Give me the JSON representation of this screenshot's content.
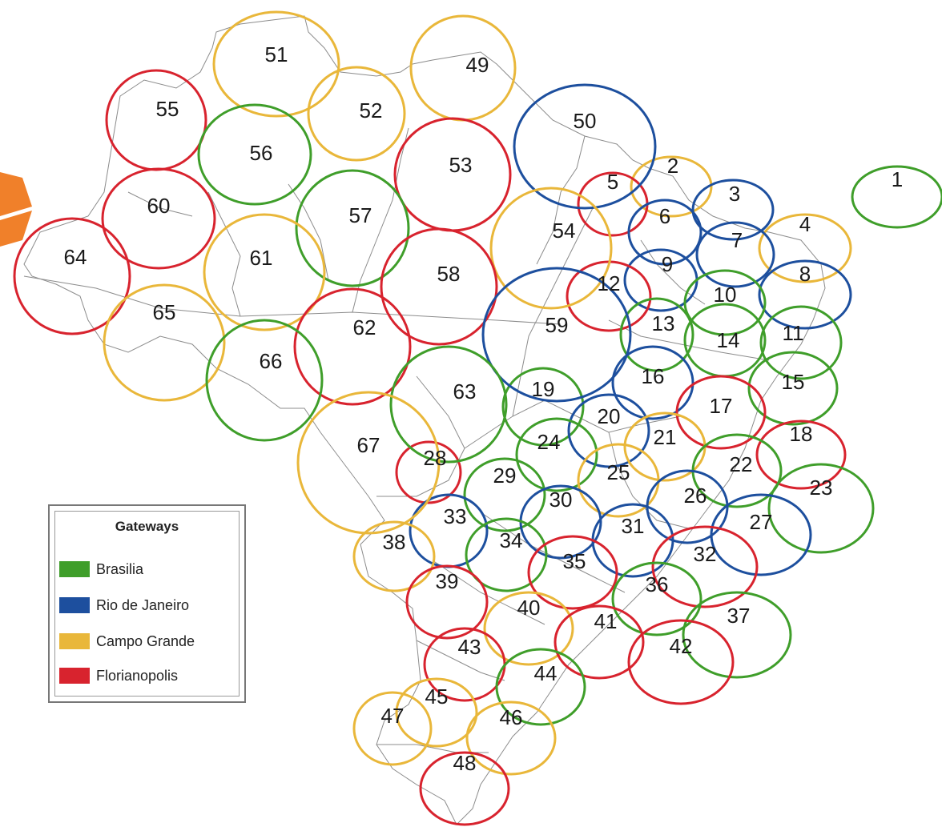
{
  "colors": {
    "brasilia": "#3f9e2a",
    "rio": "#1d4f9e",
    "campo": "#e9b73a",
    "floripa": "#d8232e",
    "border": "#8c8c8c",
    "arrow": "#f0802a"
  },
  "legend": {
    "title": "Gateways",
    "items": [
      {
        "label": "Brasilia",
        "gateway": "brasilia"
      },
      {
        "label": "Rio de Janeiro",
        "gateway": "rio"
      },
      {
        "label": "Campo Grande",
        "gateway": "campo"
      },
      {
        "label": "Florianopolis",
        "gateway": "floripa"
      }
    ]
  },
  "beams": [
    {
      "label": "1",
      "gateway": "brasilia"
    },
    {
      "label": "2",
      "gateway": "campo"
    },
    {
      "label": "3",
      "gateway": "rio"
    },
    {
      "label": "4",
      "gateway": "campo"
    },
    {
      "label": "5",
      "gateway": "floripa"
    },
    {
      "label": "6",
      "gateway": "rio"
    },
    {
      "label": "7",
      "gateway": "rio"
    },
    {
      "label": "8",
      "gateway": "rio"
    },
    {
      "label": "9",
      "gateway": "rio"
    },
    {
      "label": "10",
      "gateway": "brasilia"
    },
    {
      "label": "11",
      "gateway": "brasilia"
    },
    {
      "label": "12",
      "gateway": "floripa"
    },
    {
      "label": "13",
      "gateway": "brasilia"
    },
    {
      "label": "14",
      "gateway": "brasilia"
    },
    {
      "label": "15",
      "gateway": "brasilia"
    },
    {
      "label": "16",
      "gateway": "rio"
    },
    {
      "label": "17",
      "gateway": "floripa"
    },
    {
      "label": "18",
      "gateway": "floripa"
    },
    {
      "label": "19",
      "gateway": "brasilia"
    },
    {
      "label": "20",
      "gateway": "rio"
    },
    {
      "label": "21",
      "gateway": "campo"
    },
    {
      "label": "22",
      "gateway": "brasilia"
    },
    {
      "label": "23",
      "gateway": "brasilia"
    },
    {
      "label": "24",
      "gateway": "brasilia"
    },
    {
      "label": "25",
      "gateway": "campo"
    },
    {
      "label": "26",
      "gateway": "rio"
    },
    {
      "label": "27",
      "gateway": "rio"
    },
    {
      "label": "28",
      "gateway": "floripa"
    },
    {
      "label": "29",
      "gateway": "brasilia"
    },
    {
      "label": "30",
      "gateway": "rio"
    },
    {
      "label": "31",
      "gateway": "rio"
    },
    {
      "label": "32",
      "gateway": "floripa"
    },
    {
      "label": "33",
      "gateway": "rio"
    },
    {
      "label": "34",
      "gateway": "brasilia"
    },
    {
      "label": "35",
      "gateway": "floripa"
    },
    {
      "label": "36",
      "gateway": "brasilia"
    },
    {
      "label": "37",
      "gateway": "brasilia"
    },
    {
      "label": "38",
      "gateway": "campo"
    },
    {
      "label": "39",
      "gateway": "floripa"
    },
    {
      "label": "40",
      "gateway": "campo"
    },
    {
      "label": "41",
      "gateway": "floripa"
    },
    {
      "label": "42",
      "gateway": "floripa"
    },
    {
      "label": "43",
      "gateway": "floripa"
    },
    {
      "label": "44",
      "gateway": "brasilia"
    },
    {
      "label": "45",
      "gateway": "campo"
    },
    {
      "label": "46",
      "gateway": "campo"
    },
    {
      "label": "47",
      "gateway": "campo"
    },
    {
      "label": "48",
      "gateway": "floripa"
    },
    {
      "label": "49",
      "gateway": "campo"
    },
    {
      "label": "50",
      "gateway": "rio"
    },
    {
      "label": "51",
      "gateway": "campo"
    },
    {
      "label": "52",
      "gateway": "campo"
    },
    {
      "label": "53",
      "gateway": "floripa"
    },
    {
      "label": "54",
      "gateway": "campo"
    },
    {
      "label": "55",
      "gateway": "floripa"
    },
    {
      "label": "56",
      "gateway": "brasilia"
    },
    {
      "label": "57",
      "gateway": "brasilia"
    },
    {
      "label": "58",
      "gateway": "floripa"
    },
    {
      "label": "59",
      "gateway": "rio"
    },
    {
      "label": "60",
      "gateway": "floripa"
    },
    {
      "label": "61",
      "gateway": "campo"
    },
    {
      "label": "62",
      "gateway": "floripa"
    },
    {
      "label": "63",
      "gateway": "brasilia"
    },
    {
      "label": "64",
      "gateway": "floripa"
    },
    {
      "label": "65",
      "gateway": "campo"
    },
    {
      "label": "66",
      "gateway": "brasilia"
    },
    {
      "label": "67",
      "gateway": "campo"
    }
  ]
}
